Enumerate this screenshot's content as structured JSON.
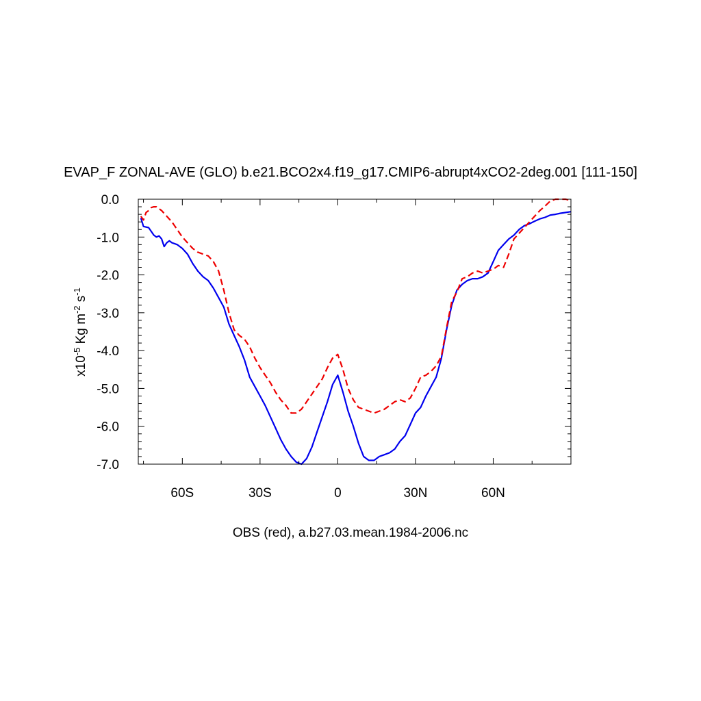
{
  "chart_data": {
    "type": "line",
    "title": "EVAP_F ZONAL-AVE (GLO) b.e21.BCO2x4.f19_g17.CMIP6-abrupt4xCO2-2deg.001 [111-150]",
    "ylabel_prefix": "x10",
    "ylabel_exp1": "-5",
    "ylabel_mid": " Kg m",
    "ylabel_exp2": "-2",
    "ylabel_mid2": " s",
    "ylabel_exp3": "-1",
    "xlabel": "OBS (red), a.b27.03.mean.1984-2006.nc",
    "xlim": [
      -77,
      90
    ],
    "ylim": [
      -7.0,
      0.0
    ],
    "x_ticks": [
      {
        "value": -60,
        "label": "60S"
      },
      {
        "value": -30,
        "label": "30S"
      },
      {
        "value": 0,
        "label": "0"
      },
      {
        "value": 30,
        "label": "30N"
      },
      {
        "value": 60,
        "label": "60N"
      }
    ],
    "y_ticks": [
      {
        "value": 0.0,
        "label": "0.0"
      },
      {
        "value": -1.0,
        "label": "-1.0"
      },
      {
        "value": -2.0,
        "label": "-2.0"
      },
      {
        "value": -3.0,
        "label": "-3.0"
      },
      {
        "value": -4.0,
        "label": "-4.0"
      },
      {
        "value": -5.0,
        "label": "-5.0"
      },
      {
        "value": -6.0,
        "label": "-6.0"
      },
      {
        "value": -7.0,
        "label": "-7.0"
      }
    ],
    "series": [
      {
        "color": "#0000ee",
        "dash": "solid",
        "x": [
          -76,
          -75,
          -73,
          -72,
          -71,
          -70,
          -69,
          -68,
          -67,
          -66,
          -65,
          -64,
          -62,
          -60,
          -58,
          -56,
          -54,
          -52,
          -50,
          -48,
          -46,
          -44,
          -42,
          -40,
          -38,
          -36,
          -34,
          -32,
          -30,
          -28,
          -26,
          -24,
          -22,
          -20,
          -18,
          -16,
          -14,
          -12,
          -10,
          -8,
          -6,
          -4,
          -2,
          0,
          2,
          4,
          6,
          8,
          10,
          12,
          14,
          16,
          18,
          20,
          22,
          24,
          26,
          28,
          30,
          32,
          34,
          36,
          38,
          40,
          42,
          44,
          46,
          48,
          50,
          52,
          54,
          56,
          58,
          60,
          62,
          64,
          66,
          68,
          70,
          72,
          74,
          76,
          78,
          80,
          82,
          84,
          86,
          88,
          90
        ],
        "y": [
          -0.5,
          -0.72,
          -0.75,
          -0.85,
          -0.95,
          -1.0,
          -0.97,
          -1.05,
          -1.25,
          -1.15,
          -1.1,
          -1.15,
          -1.2,
          -1.3,
          -1.45,
          -1.7,
          -1.9,
          -2.05,
          -2.15,
          -2.35,
          -2.6,
          -2.85,
          -3.3,
          -3.6,
          -3.9,
          -4.25,
          -4.7,
          -4.95,
          -5.2,
          -5.45,
          -5.75,
          -6.05,
          -6.35,
          -6.6,
          -6.8,
          -6.95,
          -7.0,
          -6.85,
          -6.55,
          -6.15,
          -5.75,
          -5.35,
          -4.9,
          -4.65,
          -5.1,
          -5.6,
          -6.0,
          -6.45,
          -6.8,
          -6.9,
          -6.9,
          -6.8,
          -6.75,
          -6.7,
          -6.6,
          -6.4,
          -6.25,
          -5.95,
          -5.65,
          -5.5,
          -5.2,
          -4.95,
          -4.7,
          -4.2,
          -3.45,
          -2.8,
          -2.4,
          -2.25,
          -2.15,
          -2.1,
          -2.1,
          -2.05,
          -1.95,
          -1.65,
          -1.35,
          -1.2,
          -1.05,
          -0.95,
          -0.8,
          -0.7,
          -0.65,
          -0.58,
          -0.52,
          -0.48,
          -0.42,
          -0.4,
          -0.37,
          -0.35,
          -0.33
        ]
      },
      {
        "color": "#ee0000",
        "dash": "dashed",
        "x": [
          -76,
          -75,
          -74,
          -73,
          -72,
          -71,
          -70,
          -68,
          -66,
          -64,
          -62,
          -60,
          -58,
          -56,
          -54,
          -52,
          -50,
          -48,
          -46,
          -44,
          -42,
          -40,
          -38,
          -36,
          -34,
          -32,
          -30,
          -28,
          -26,
          -24,
          -22,
          -20,
          -18,
          -16,
          -14,
          -12,
          -10,
          -8,
          -6,
          -4,
          -2,
          0,
          2,
          4,
          6,
          8,
          10,
          12,
          14,
          16,
          18,
          20,
          22,
          24,
          26,
          28,
          30,
          32,
          34,
          36,
          38,
          40,
          42,
          44,
          46,
          48,
          50,
          52,
          54,
          56,
          58,
          60,
          62,
          64,
          66,
          68,
          70,
          72,
          74,
          76,
          78,
          80,
          82,
          84,
          86,
          88,
          89
        ],
        "y": [
          -0.45,
          -0.55,
          -0.35,
          -0.3,
          -0.22,
          -0.2,
          -0.2,
          -0.3,
          -0.45,
          -0.6,
          -0.8,
          -1.0,
          -1.15,
          -1.3,
          -1.4,
          -1.45,
          -1.5,
          -1.65,
          -1.9,
          -2.4,
          -3.0,
          -3.45,
          -3.6,
          -3.7,
          -3.9,
          -4.2,
          -4.45,
          -4.65,
          -4.85,
          -5.1,
          -5.3,
          -5.45,
          -5.65,
          -5.65,
          -5.55,
          -5.35,
          -5.15,
          -4.95,
          -4.75,
          -4.45,
          -4.2,
          -4.1,
          -4.5,
          -5.0,
          -5.3,
          -5.5,
          -5.55,
          -5.6,
          -5.65,
          -5.6,
          -5.55,
          -5.45,
          -5.35,
          -5.3,
          -5.35,
          -5.25,
          -5.0,
          -4.7,
          -4.65,
          -4.55,
          -4.4,
          -4.15,
          -3.4,
          -2.7,
          -2.45,
          -2.1,
          -2.05,
          -1.95,
          -1.9,
          -1.95,
          -1.9,
          -1.85,
          -1.75,
          -1.8,
          -1.45,
          -1.05,
          -0.9,
          -0.75,
          -0.6,
          -0.45,
          -0.3,
          -0.18,
          -0.05,
          0.0,
          0.0,
          0.0,
          -0.02
        ]
      }
    ]
  }
}
